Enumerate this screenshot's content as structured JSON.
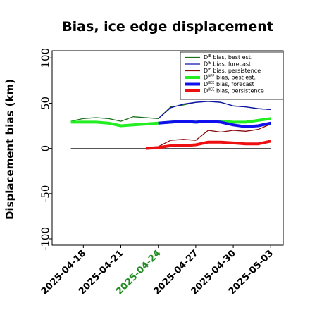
{
  "chart_data": {
    "type": "line",
    "title": "Bias, ice edge displacement",
    "xlabel": "",
    "ylabel": "Displacement bias (km)",
    "ylim": [
      -107,
      108
    ],
    "yticks": [
      100,
      50,
      0,
      -50,
      -100
    ],
    "xlim": [
      "2025-04-15T12",
      "2025-05-04"
    ],
    "xticks": [
      "2025-04-18",
      "2025-04-21",
      "2025-04-24",
      "2025-04-27",
      "2025-04-30",
      "2025-05-03"
    ],
    "xtick_colors": [
      "#000000",
      "#000000",
      "#228b22",
      "#000000",
      "#000000",
      "#000000"
    ],
    "zero_line": 0,
    "grid": false,
    "legend_position": "top-right",
    "series": [
      {
        "name": "D^IE bias, best est.",
        "label_main": "D",
        "label_sup": "IE",
        "label_rest": " bias, best est.",
        "color": "#1a6f1a",
        "width": 1.3,
        "x": [
          "2025-04-17",
          "2025-04-18",
          "2025-04-19",
          "2025-04-20",
          "2025-04-21",
          "2025-04-22",
          "2025-04-23",
          "2025-04-24",
          "2025-04-25",
          "2025-04-26",
          "2025-04-27",
          "2025-04-28",
          "2025-04-29",
          "2025-04-30",
          "2025-05-01",
          "2025-05-02",
          "2025-05-03"
        ],
        "values": [
          30,
          33,
          34,
          33,
          30,
          35,
          34,
          33,
          46,
          48,
          51,
          52,
          51,
          47,
          46,
          44,
          43
        ]
      },
      {
        "name": "D^IE bias, forecast",
        "label_main": "D",
        "label_sup": "IE",
        "label_rest": " bias, forecast",
        "color": "#1010b4",
        "width": 1.3,
        "x": [
          "2025-04-24",
          "2025-04-25",
          "2025-04-26",
          "2025-04-27",
          "2025-04-28",
          "2025-04-29",
          "2025-04-30",
          "2025-05-01",
          "2025-05-02",
          "2025-05-03"
        ],
        "values": [
          33,
          45,
          49,
          51,
          52,
          51,
          47,
          46,
          44,
          43
        ]
      },
      {
        "name": "D^IE bias, persistence",
        "label_main": "D",
        "label_sup": "IE",
        "label_rest": " bias, persistence",
        "color": "#8b0a0a",
        "width": 1.3,
        "x": [
          "2025-04-23",
          "2025-04-24",
          "2025-04-25",
          "2025-04-26",
          "2025-04-27",
          "2025-04-28",
          "2025-04-29",
          "2025-04-30",
          "2025-05-01",
          "2025-05-02",
          "2025-05-03"
        ],
        "values": [
          0,
          2,
          9,
          10,
          9,
          20,
          18,
          20,
          19,
          21,
          27
        ]
      },
      {
        "name": "D^IIEE bias, best est.",
        "label_main": "D",
        "label_sup": "IIEE",
        "label_rest": " bias, best est.",
        "color": "#22ee22",
        "width": 4,
        "x": [
          "2025-04-17",
          "2025-04-18",
          "2025-04-19",
          "2025-04-20",
          "2025-04-21",
          "2025-04-22",
          "2025-04-23",
          "2025-04-24",
          "2025-04-25",
          "2025-04-26",
          "2025-04-27",
          "2025-04-28",
          "2025-04-29",
          "2025-04-30",
          "2025-05-01",
          "2025-05-02",
          "2025-05-03"
        ],
        "values": [
          29,
          29,
          29,
          28,
          25,
          26,
          27,
          28,
          29,
          30,
          29,
          30,
          30,
          29,
          29,
          31,
          33
        ]
      },
      {
        "name": "D^IIEE bias, forecast",
        "label_main": "D",
        "label_sup": "IIEE",
        "label_rest": " bias, forecast",
        "color": "#1010ee",
        "width": 4,
        "x": [
          "2025-04-24",
          "2025-04-25",
          "2025-04-26",
          "2025-04-27",
          "2025-04-28",
          "2025-04-29",
          "2025-04-30",
          "2025-05-01",
          "2025-05-02",
          "2025-05-03"
        ],
        "values": [
          28,
          29,
          30,
          29,
          30,
          29,
          26,
          24,
          25,
          28
        ]
      },
      {
        "name": "D^IIEE bias, persistence",
        "label_main": "D",
        "label_sup": "IIEE",
        "label_rest": " bias, persistence",
        "color": "#ee1010",
        "width": 4,
        "x": [
          "2025-04-23",
          "2025-04-24",
          "2025-04-25",
          "2025-04-26",
          "2025-04-27",
          "2025-04-28",
          "2025-04-29",
          "2025-04-30",
          "2025-05-01",
          "2025-05-02",
          "2025-05-03"
        ],
        "values": [
          0,
          1,
          3,
          3,
          4,
          7,
          7,
          6,
          5,
          5,
          8
        ]
      }
    ]
  }
}
